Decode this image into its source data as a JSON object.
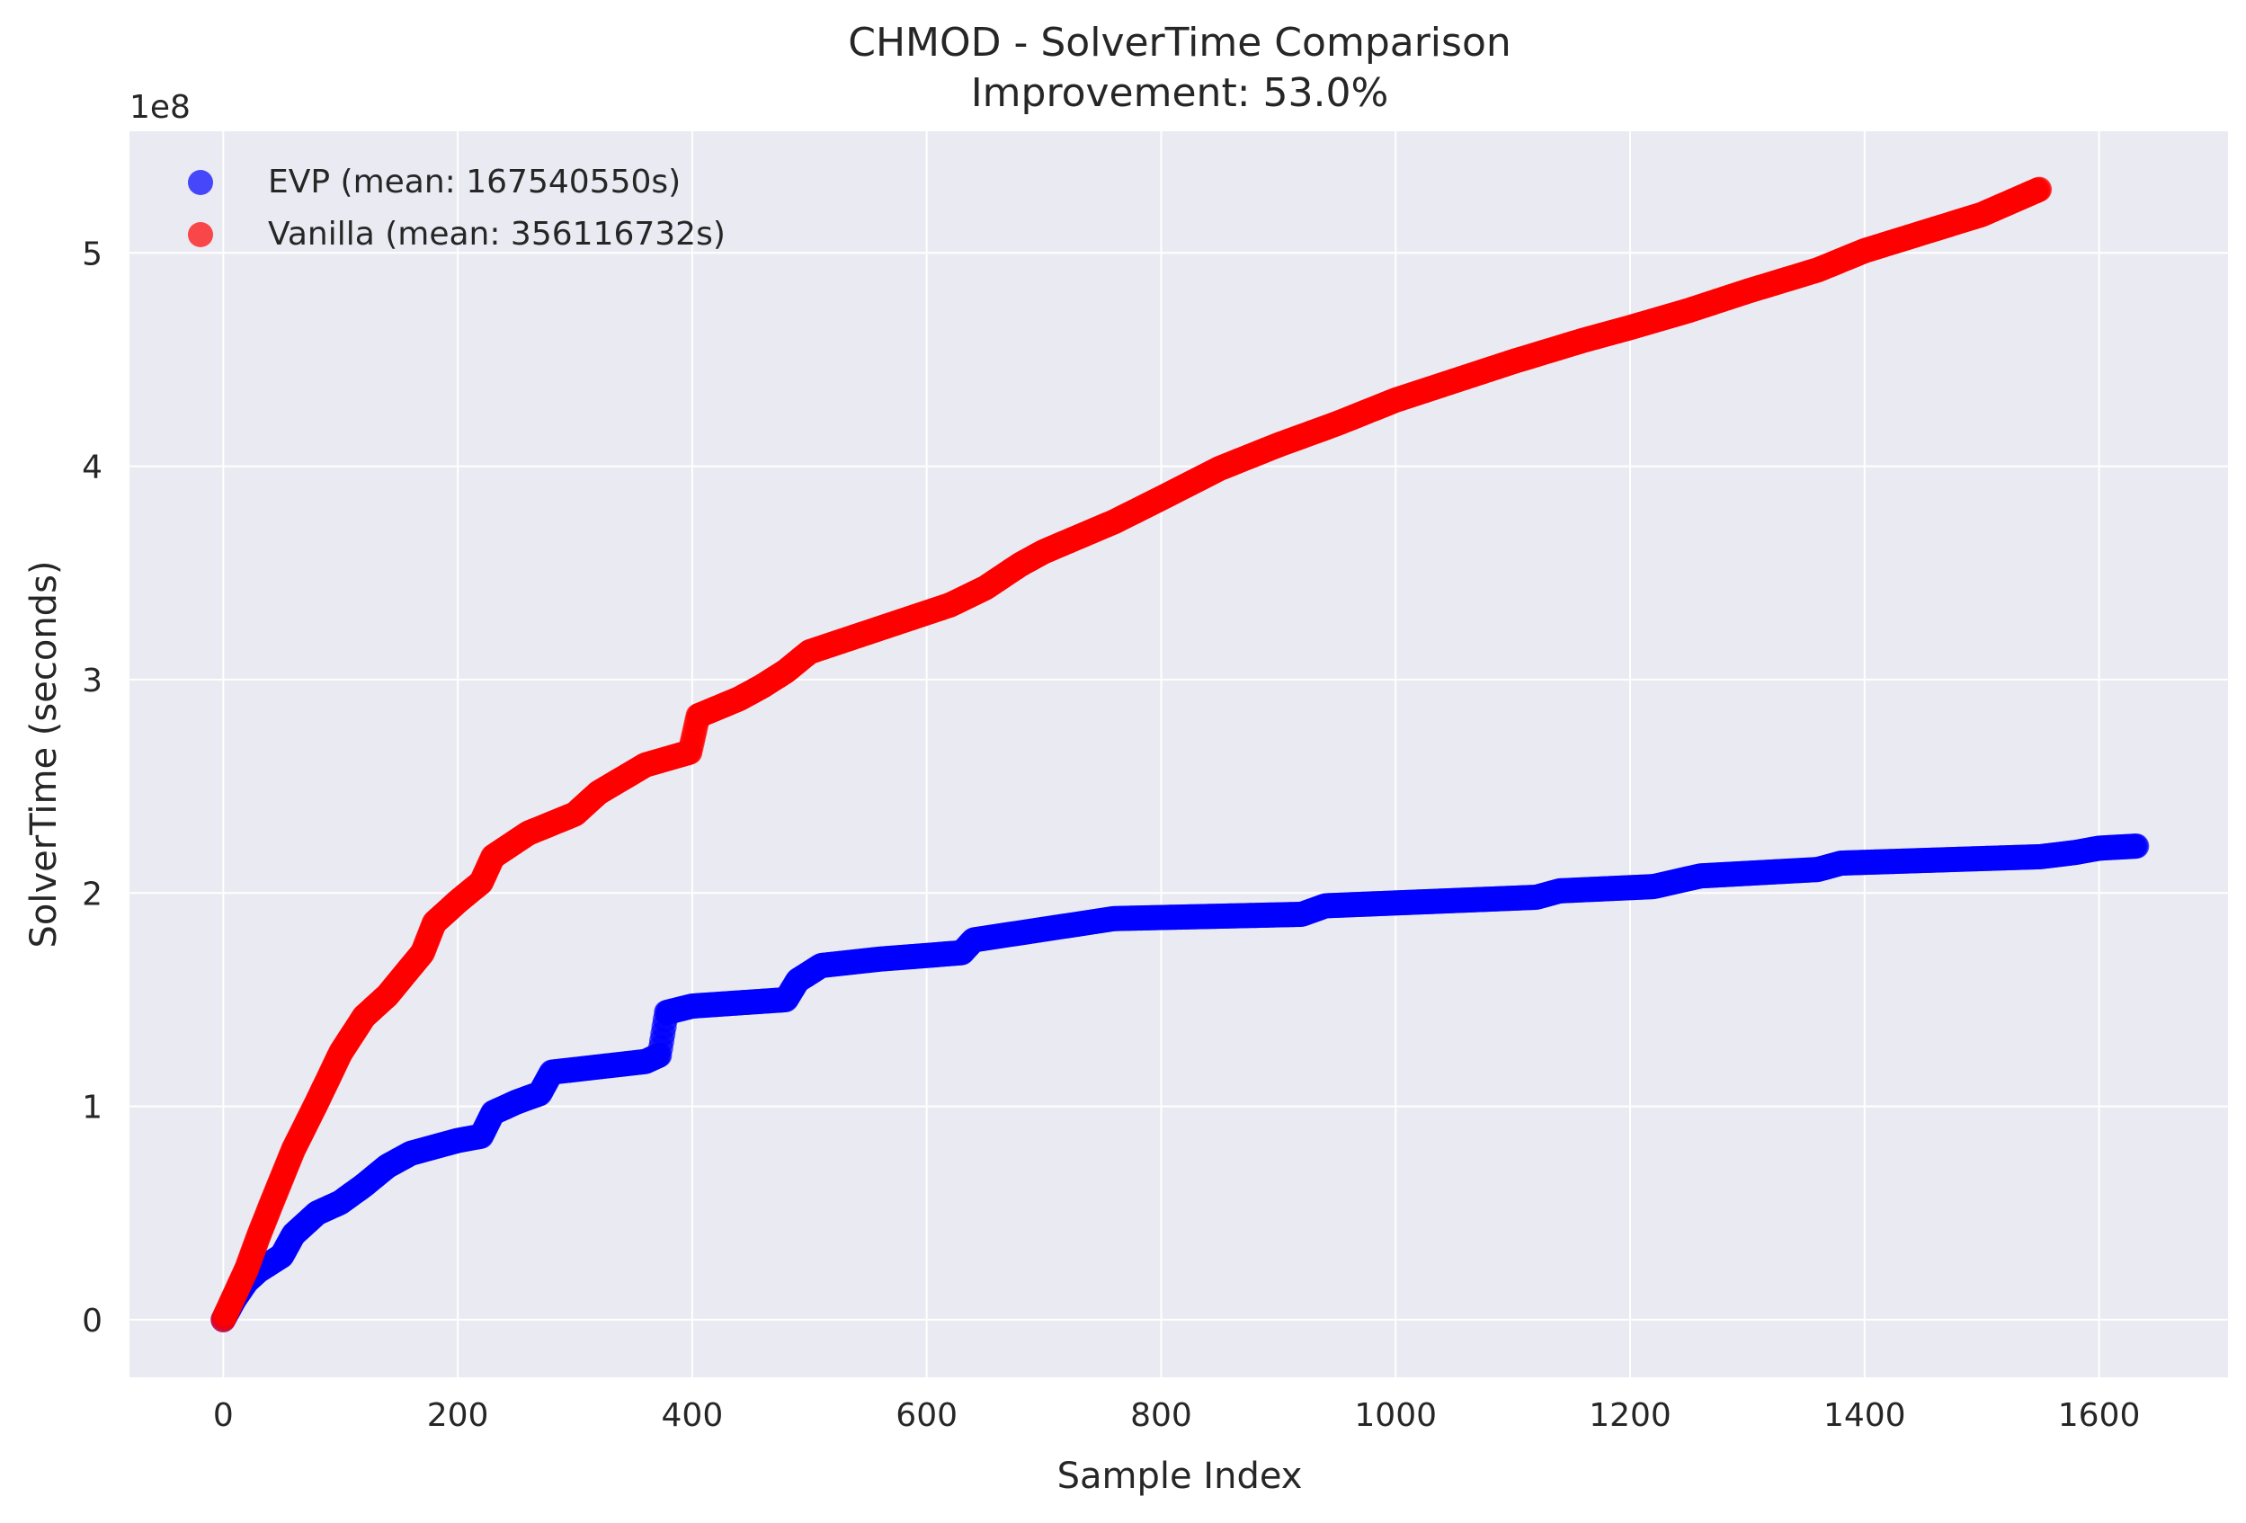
{
  "chart_data": {
    "type": "scatter",
    "title": "CHMOD - SolverTime Comparison",
    "subtitle": "Improvement: 53.0%",
    "xlabel": "Sample Index",
    "ylabel": "SolverTime (seconds)",
    "y_offset_text": "1e8",
    "xlim": [
      -80,
      1710
    ],
    "ylim": [
      -0.27,
      5.57
    ],
    "x_ticks": [
      0,
      200,
      400,
      600,
      800,
      1000,
      1200,
      1400,
      1600
    ],
    "y_ticks": [
      0,
      1,
      2,
      3,
      4,
      5
    ],
    "grid": true,
    "legend_position": "top-left",
    "colors": {
      "plot_bg": "#eaeaf2",
      "grid": "#ffffff"
    },
    "series": [
      {
        "name": "EVP (mean: 167540550s)",
        "color": "#0000ff",
        "count": 1633,
        "anchors": [
          [
            0,
            0.0
          ],
          [
            10,
            0.1
          ],
          [
            20,
            0.18
          ],
          [
            30,
            0.23
          ],
          [
            50,
            0.3
          ],
          [
            60,
            0.4
          ],
          [
            80,
            0.5
          ],
          [
            100,
            0.55
          ],
          [
            120,
            0.63
          ],
          [
            140,
            0.72
          ],
          [
            160,
            0.78
          ],
          [
            200,
            0.84
          ],
          [
            220,
            0.86
          ],
          [
            230,
            0.97
          ],
          [
            250,
            1.02
          ],
          [
            270,
            1.06
          ],
          [
            280,
            1.16
          ],
          [
            360,
            1.21
          ],
          [
            372,
            1.24
          ],
          [
            378,
            1.44
          ],
          [
            400,
            1.47
          ],
          [
            480,
            1.5
          ],
          [
            490,
            1.59
          ],
          [
            510,
            1.66
          ],
          [
            560,
            1.69
          ],
          [
            630,
            1.72
          ],
          [
            640,
            1.78
          ],
          [
            700,
            1.83
          ],
          [
            760,
            1.88
          ],
          [
            920,
            1.9
          ],
          [
            940,
            1.94
          ],
          [
            1120,
            1.98
          ],
          [
            1140,
            2.01
          ],
          [
            1220,
            2.03
          ],
          [
            1260,
            2.08
          ],
          [
            1360,
            2.11
          ],
          [
            1380,
            2.14
          ],
          [
            1550,
            2.17
          ],
          [
            1580,
            2.19
          ],
          [
            1600,
            2.21
          ],
          [
            1633,
            2.22
          ]
        ]
      },
      {
        "name": "Vanilla (mean: 356116732s)",
        "color": "#ff0000",
        "count": 1550,
        "anchors": [
          [
            0,
            0.0
          ],
          [
            10,
            0.12
          ],
          [
            20,
            0.24
          ],
          [
            30,
            0.39
          ],
          [
            40,
            0.53
          ],
          [
            60,
            0.8
          ],
          [
            80,
            1.02
          ],
          [
            100,
            1.25
          ],
          [
            120,
            1.42
          ],
          [
            140,
            1.52
          ],
          [
            170,
            1.72
          ],
          [
            180,
            1.86
          ],
          [
            200,
            1.96
          ],
          [
            220,
            2.05
          ],
          [
            230,
            2.17
          ],
          [
            260,
            2.28
          ],
          [
            300,
            2.37
          ],
          [
            320,
            2.47
          ],
          [
            360,
            2.6
          ],
          [
            398,
            2.66
          ],
          [
            405,
            2.83
          ],
          [
            440,
            2.91
          ],
          [
            460,
            2.97
          ],
          [
            480,
            3.04
          ],
          [
            500,
            3.13
          ],
          [
            560,
            3.24
          ],
          [
            620,
            3.35
          ],
          [
            650,
            3.43
          ],
          [
            680,
            3.54
          ],
          [
            700,
            3.6
          ],
          [
            760,
            3.74
          ],
          [
            800,
            3.85
          ],
          [
            850,
            3.99
          ],
          [
            900,
            4.1
          ],
          [
            950,
            4.2
          ],
          [
            1000,
            4.31
          ],
          [
            1100,
            4.49
          ],
          [
            1160,
            4.59
          ],
          [
            1200,
            4.65
          ],
          [
            1250,
            4.73
          ],
          [
            1300,
            4.82
          ],
          [
            1360,
            4.92
          ],
          [
            1400,
            5.01
          ],
          [
            1500,
            5.18
          ],
          [
            1550,
            5.3
          ]
        ]
      }
    ]
  }
}
